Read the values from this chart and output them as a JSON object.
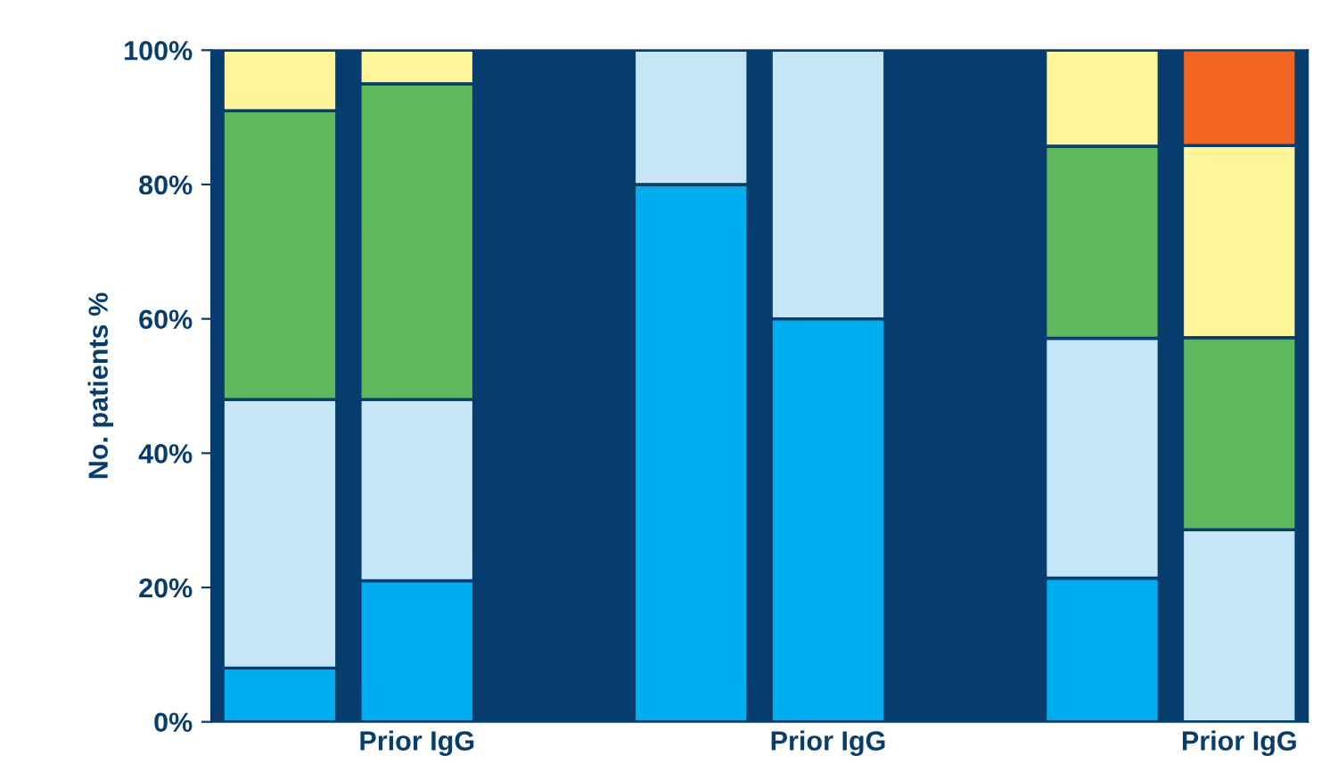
{
  "chart_data": {
    "type": "bar",
    "stacked": true,
    "ylabel": "No. patients %",
    "categories": [
      null,
      "Prior IgG",
      null,
      null,
      "Prior IgG",
      null,
      null,
      "Prior IgG"
    ],
    "series": [
      {
        "color": "#00aeef",
        "values": [
          8,
          21,
          null,
          80,
          60,
          null,
          21.4,
          0
        ]
      },
      {
        "color": "#c5e6f6",
        "values": [
          40,
          27,
          null,
          20,
          40,
          null,
          35.7,
          28.6
        ]
      },
      {
        "color": "#5cb85a",
        "values": [
          43,
          47,
          null,
          null,
          null,
          null,
          28.6,
          28.6
        ]
      },
      {
        "color": "#fff59b",
        "values": [
          9,
          5,
          null,
          null,
          null,
          null,
          14.3,
          28.6
        ]
      },
      {
        "color": "#f26522",
        "values": [
          null,
          null,
          null,
          null,
          null,
          null,
          null,
          14.3
        ]
      }
    ],
    "ylim": [
      0,
      100
    ],
    "yticks": [
      {
        "value": 0,
        "label": "0%"
      },
      {
        "value": 20,
        "label": "20%"
      },
      {
        "value": 40,
        "label": "40%"
      },
      {
        "value": 60,
        "label": "60%"
      },
      {
        "value": 80,
        "label": "80%"
      },
      {
        "value": 100,
        "label": "100%"
      }
    ],
    "grid": false,
    "legend": false
  }
}
